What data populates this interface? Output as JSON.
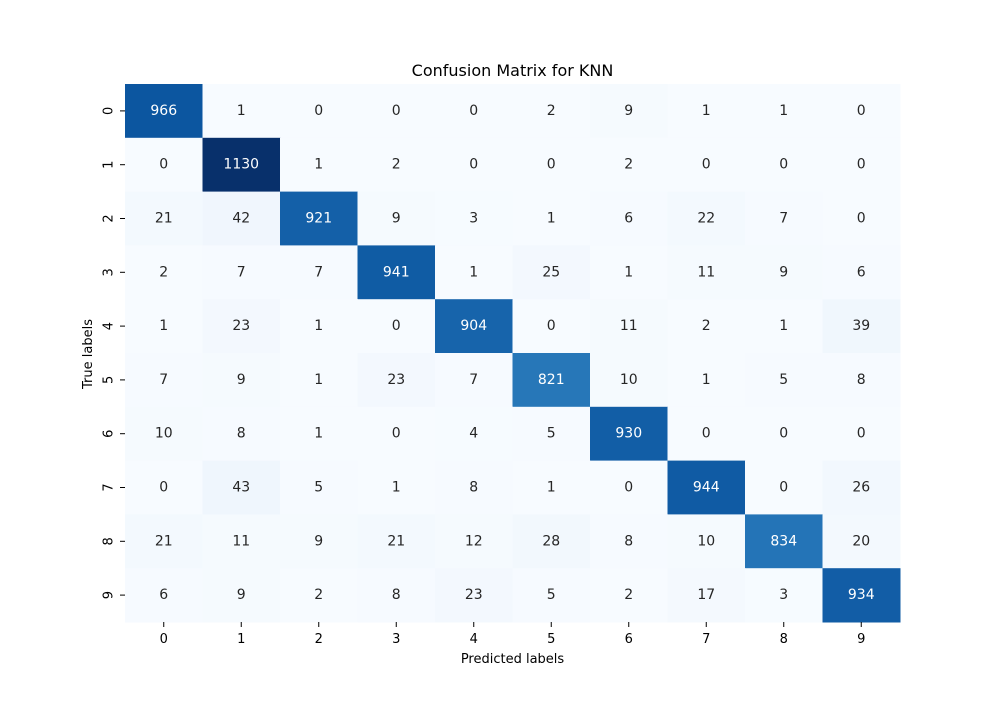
{
  "chart_data": {
    "type": "heatmap",
    "title": "Confusion Matrix for KNN",
    "xlabel": "Predicted labels",
    "ylabel": "True labels",
    "x_categories": [
      "0",
      "1",
      "2",
      "3",
      "4",
      "5",
      "6",
      "7",
      "8",
      "9"
    ],
    "y_categories": [
      "0",
      "1",
      "2",
      "3",
      "4",
      "5",
      "6",
      "7",
      "8",
      "9"
    ],
    "colormap": "Blues",
    "colorbar": false,
    "annotations": true,
    "values": [
      [
        966,
        1,
        0,
        0,
        0,
        2,
        9,
        1,
        1,
        0
      ],
      [
        0,
        1130,
        1,
        2,
        0,
        0,
        2,
        0,
        0,
        0
      ],
      [
        21,
        42,
        921,
        9,
        3,
        1,
        6,
        22,
        7,
        0
      ],
      [
        2,
        7,
        7,
        941,
        1,
        25,
        1,
        11,
        9,
        6
      ],
      [
        1,
        23,
        1,
        0,
        904,
        0,
        11,
        2,
        1,
        39
      ],
      [
        7,
        9,
        1,
        23,
        7,
        821,
        10,
        1,
        5,
        8
      ],
      [
        10,
        8,
        1,
        0,
        4,
        5,
        930,
        0,
        0,
        0
      ],
      [
        0,
        43,
        5,
        1,
        8,
        1,
        0,
        944,
        0,
        26
      ],
      [
        21,
        11,
        9,
        21,
        12,
        28,
        8,
        10,
        834,
        20
      ],
      [
        6,
        9,
        2,
        8,
        23,
        5,
        2,
        17,
        3,
        934
      ]
    ]
  }
}
